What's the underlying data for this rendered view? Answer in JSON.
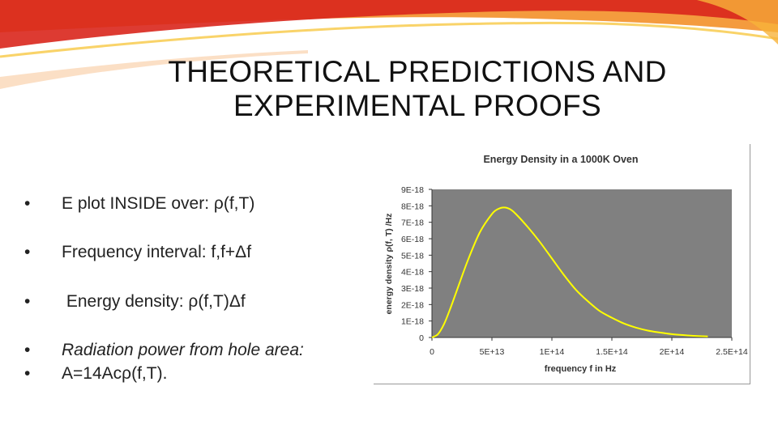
{
  "slide": {
    "title_lines": [
      "THEORETICAL PREDICTIONS AND",
      "EXPERIMENTAL PROOFS"
    ],
    "bullets": [
      {
        "marker": "•",
        "text": "E plot INSIDE over: ρ(f,T)",
        "italic": false
      },
      {
        "marker": "•",
        "text": "Frequency interval: f,f+Δf",
        "italic": false
      },
      {
        "marker": "•",
        "text": " Energy density: ρ(f,T)Δf",
        "italic": false
      },
      {
        "marker": "•",
        "text": "Radiation power from hole area:",
        "italic": true
      },
      {
        "marker": "•",
        "text": "A=14Acρ(f,T).",
        "italic": false
      }
    ]
  },
  "colors": {
    "plot_background": "#808080",
    "curve": "#ffff00",
    "decor_red": "#d9261c",
    "decor_orange": "#f28a1c"
  },
  "chart_data": {
    "type": "line",
    "title": "Energy Density in a 1000K Oven",
    "xlabel": "frequency f in Hz",
    "ylabel": "energy density ρ(f, T) /Hz",
    "xlim": [
      0,
      250000000000000.0
    ],
    "ylim": [
      0,
      9e-18
    ],
    "x_tick_labels": [
      "0",
      "5E+13",
      "1E+14",
      "1.5E+14",
      "2E+14",
      "2.5E+14"
    ],
    "y_tick_labels": [
      "0",
      "1E-18",
      "2E-18",
      "3E-18",
      "4E-18",
      "5E-18",
      "6E-18",
      "7E-18",
      "8E-18",
      "9E-18"
    ],
    "grid": false,
    "legend": "none",
    "series": [
      {
        "x": [
          0,
          5000000000000.0,
          10000000000000.0,
          15000000000000.0,
          20000000000000.0,
          30000000000000.0,
          40000000000000.0,
          50000000000000.0,
          55000000000000.0,
          60000000000000.0,
          65000000000000.0,
          70000000000000.0,
          80000000000000.0,
          90000000000000.0,
          100000000000000.0,
          110000000000000.0,
          120000000000000.0,
          130000000000000.0,
          140000000000000.0,
          150000000000000.0,
          160000000000000.0,
          170000000000000.0,
          180000000000000.0,
          190000000000000.0,
          200000000000000.0,
          210000000000000.0,
          220000000000000.0,
          230000000000000.0
        ],
        "y": [
          0,
          2e-19,
          8e-19,
          1.7e-18,
          2.7e-18,
          4.7e-18,
          6.4e-18,
          7.5e-18,
          7.8e-18,
          7.9e-18,
          7.8e-18,
          7.5e-18,
          6.7e-18,
          5.8e-18,
          4.8e-18,
          3.8e-18,
          2.9e-18,
          2.2e-18,
          1.6e-18,
          1.2e-18,
          8.5e-19,
          6e-19,
          4.2e-19,
          3e-19,
          2e-19,
          1.4e-19,
          9e-20,
          6e-20
        ]
      }
    ]
  }
}
